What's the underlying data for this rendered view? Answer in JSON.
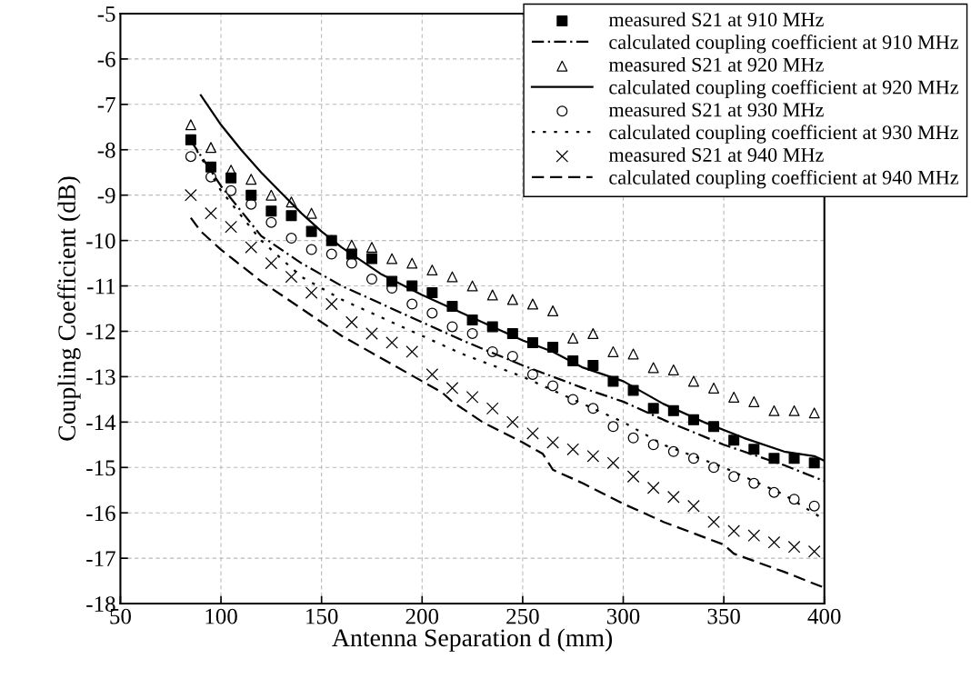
{
  "chart_data": {
    "type": "scatter",
    "xlabel": "Antenna Separation d (mm)",
    "ylabel": "Coupling Coefficient (dB)",
    "xlim": [
      50,
      400
    ],
    "ylim": [
      -18,
      -5
    ],
    "xticks": [
      50,
      100,
      150,
      200,
      250,
      300,
      350,
      400
    ],
    "yticks": [
      -18,
      -17,
      -16,
      -15,
      -14,
      -13,
      -12,
      -11,
      -10,
      -9,
      -8,
      -7,
      -6,
      -5
    ],
    "grid": true,
    "legend": "top right",
    "series": [
      {
        "name": "measured S21 at 910 MHz",
        "marker": "square",
        "color": "#000000",
        "x": [
          85,
          95,
          105,
          115,
          125,
          135,
          145,
          155,
          165,
          175,
          185,
          195,
          205,
          215,
          225,
          235,
          245,
          255,
          265,
          275,
          285,
          295,
          305,
          315,
          325,
          335,
          345,
          355,
          365,
          375,
          385,
          395
        ],
        "values": [
          -7.78,
          -8.38,
          -8.62,
          -9.0,
          -9.35,
          -9.45,
          -9.8,
          -10.0,
          -10.3,
          -10.4,
          -10.9,
          -11.0,
          -11.15,
          -11.45,
          -11.75,
          -11.9,
          -12.05,
          -12.25,
          -12.35,
          -12.65,
          -12.75,
          -13.1,
          -13.3,
          -13.7,
          -13.75,
          -13.95,
          -14.1,
          -14.4,
          -14.6,
          -14.8,
          -14.8,
          -14.9
        ]
      },
      {
        "name": "calculated coupling coefficient at 910 MHz",
        "type": "line",
        "line_style": "dashdot",
        "color": "#000000",
        "x": [
          85,
          100,
          120,
          140,
          160,
          180,
          200,
          220,
          250,
          280,
          300,
          320,
          350,
          380,
          400
        ],
        "values": [
          -7.8,
          -8.8,
          -9.9,
          -10.5,
          -11.0,
          -11.4,
          -11.8,
          -12.2,
          -12.75,
          -13.25,
          -13.55,
          -13.95,
          -14.5,
          -14.95,
          -15.3
        ]
      },
      {
        "name": "measured S21 at 920 MHz",
        "marker": "triangle",
        "color": "#000000",
        "x": [
          85,
          95,
          105,
          115,
          125,
          135,
          145,
          155,
          165,
          175,
          185,
          195,
          205,
          215,
          225,
          235,
          245,
          255,
          265,
          275,
          285,
          295,
          305,
          315,
          325,
          335,
          345,
          355,
          365,
          375,
          385,
          395
        ],
        "values": [
          -7.45,
          -7.95,
          -8.45,
          -8.65,
          -9.0,
          -9.15,
          -9.4,
          -10.0,
          -10.1,
          -10.15,
          -10.4,
          -10.5,
          -10.65,
          -10.8,
          -11.0,
          -11.2,
          -11.3,
          -11.4,
          -11.55,
          -12.15,
          -12.05,
          -12.45,
          -12.5,
          -12.8,
          -12.85,
          -13.1,
          -13.25,
          -13.45,
          -13.55,
          -13.75,
          -13.75,
          -13.8
        ]
      },
      {
        "name": "calculated coupling coefficient at 920 MHz",
        "type": "line",
        "line_style": "solid",
        "color": "#000000",
        "x": [
          90,
          100,
          110,
          120,
          130,
          140,
          150,
          160,
          170,
          180,
          200,
          220,
          250,
          265,
          280,
          300,
          320,
          340,
          360,
          380,
          395,
          400
        ],
        "values": [
          -6.8,
          -7.45,
          -8.0,
          -8.5,
          -8.95,
          -9.4,
          -9.8,
          -10.15,
          -10.45,
          -10.75,
          -11.2,
          -11.6,
          -12.2,
          -12.45,
          -12.8,
          -13.1,
          -13.6,
          -14.0,
          -14.35,
          -14.65,
          -14.75,
          -14.85
        ]
      },
      {
        "name": "measured S21 at 930 MHz",
        "marker": "circle",
        "color": "#000000",
        "x": [
          85,
          95,
          105,
          115,
          125,
          135,
          145,
          155,
          165,
          175,
          185,
          195,
          205,
          215,
          225,
          235,
          245,
          255,
          265,
          275,
          285,
          295,
          305,
          315,
          325,
          335,
          345,
          355,
          365,
          375,
          385,
          395
        ],
        "values": [
          -8.15,
          -8.6,
          -8.9,
          -9.2,
          -9.6,
          -9.95,
          -10.2,
          -10.3,
          -10.5,
          -10.85,
          -11.05,
          -11.4,
          -11.6,
          -11.9,
          -12.05,
          -12.45,
          -12.55,
          -12.95,
          -13.2,
          -13.5,
          -13.7,
          -14.1,
          -14.35,
          -14.5,
          -14.65,
          -14.8,
          -15.0,
          -15.2,
          -15.35,
          -15.55,
          -15.7,
          -15.85
        ]
      },
      {
        "name": "calculated coupling coefficient at 930 MHz",
        "type": "line",
        "line_style": "dotted",
        "color": "#000000",
        "x": [
          85,
          100,
          120,
          140,
          160,
          180,
          200,
          220,
          250,
          280,
          300,
          320,
          350,
          380,
          400
        ],
        "values": [
          -7.8,
          -8.9,
          -10.0,
          -10.8,
          -11.3,
          -11.7,
          -12.1,
          -12.5,
          -13.0,
          -13.6,
          -14.0,
          -14.5,
          -15.0,
          -15.6,
          -16.15
        ]
      },
      {
        "name": "measured S21 at 940 MHz",
        "marker": "cross",
        "color": "#000000",
        "x": [
          85,
          95,
          105,
          115,
          125,
          135,
          145,
          155,
          165,
          175,
          185,
          195,
          205,
          215,
          225,
          235,
          245,
          255,
          265,
          275,
          285,
          295,
          305,
          315,
          325,
          335,
          345,
          355,
          365,
          375,
          385,
          395
        ],
        "values": [
          -9.0,
          -9.4,
          -9.7,
          -10.15,
          -10.5,
          -10.8,
          -11.15,
          -11.4,
          -11.8,
          -12.05,
          -12.25,
          -12.45,
          -12.95,
          -13.25,
          -13.45,
          -13.7,
          -14.0,
          -14.25,
          -14.45,
          -14.6,
          -14.75,
          -14.9,
          -15.2,
          -15.45,
          -15.65,
          -15.85,
          -16.2,
          -16.4,
          -16.5,
          -16.65,
          -16.75,
          -16.85
        ]
      },
      {
        "name": "calculated coupling coefficient at 940 MHz",
        "type": "line",
        "line_style": "dashed",
        "color": "#000000",
        "x": [
          85,
          90,
          100,
          120,
          140,
          160,
          180,
          200,
          210,
          215,
          230,
          250,
          260,
          265,
          280,
          300,
          320,
          350,
          355,
          380,
          400
        ],
        "values": [
          -9.5,
          -9.8,
          -10.2,
          -10.9,
          -11.5,
          -12.1,
          -12.6,
          -13.1,
          -13.35,
          -13.55,
          -14.0,
          -14.45,
          -14.7,
          -15.05,
          -15.35,
          -15.8,
          -16.2,
          -16.7,
          -16.9,
          -17.3,
          -17.65
        ]
      }
    ]
  }
}
